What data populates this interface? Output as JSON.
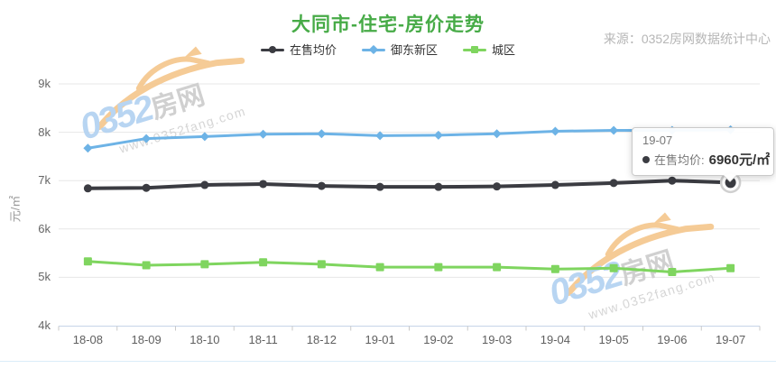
{
  "page": {
    "title": "大同市-住宅-房价走势",
    "source": "来源：0352房网数据统计中心"
  },
  "watermark": {
    "brand_number": "0352",
    "brand_suffix": "房网",
    "url": "www.0352fang.com",
    "car_color": "#f5c78e"
  },
  "tooltip": {
    "category": "19-07",
    "series_label": "在售均价:",
    "value_text": "6960元/㎡"
  },
  "chart_data": {
    "type": "line",
    "title": "大同市-住宅-房价走势",
    "xlabel": "",
    "ylabel": "元/㎡",
    "ylim": [
      4000,
      9000
    ],
    "y_tick_labels": [
      "4k",
      "5k",
      "6k",
      "7k",
      "8k",
      "9k"
    ],
    "grid": true,
    "legend_position": "top",
    "categories": [
      "18-08",
      "18-09",
      "18-10",
      "18-11",
      "18-12",
      "19-01",
      "19-02",
      "19-03",
      "19-04",
      "19-05",
      "19-06",
      "19-07"
    ],
    "series": [
      {
        "name": "在售均价",
        "color": "#3b3c42",
        "marker": "circle",
        "values": [
          6840,
          6850,
          6910,
          6930,
          6890,
          6870,
          6870,
          6880,
          6910,
          6950,
          7000,
          6960
        ]
      },
      {
        "name": "御东新区",
        "color": "#6db3e6",
        "marker": "diamond",
        "values": [
          7670,
          7870,
          7910,
          7960,
          7970,
          7930,
          7940,
          7970,
          8020,
          8040,
          8040,
          8050
        ]
      },
      {
        "name": "城区",
        "color": "#7fd55f",
        "marker": "square",
        "values": [
          5330,
          5250,
          5270,
          5310,
          5270,
          5210,
          5210,
          5210,
          5170,
          5190,
          5110,
          5190
        ]
      }
    ],
    "highlight": {
      "series": "在售均价",
      "category": "19-07",
      "value": 6960
    }
  }
}
